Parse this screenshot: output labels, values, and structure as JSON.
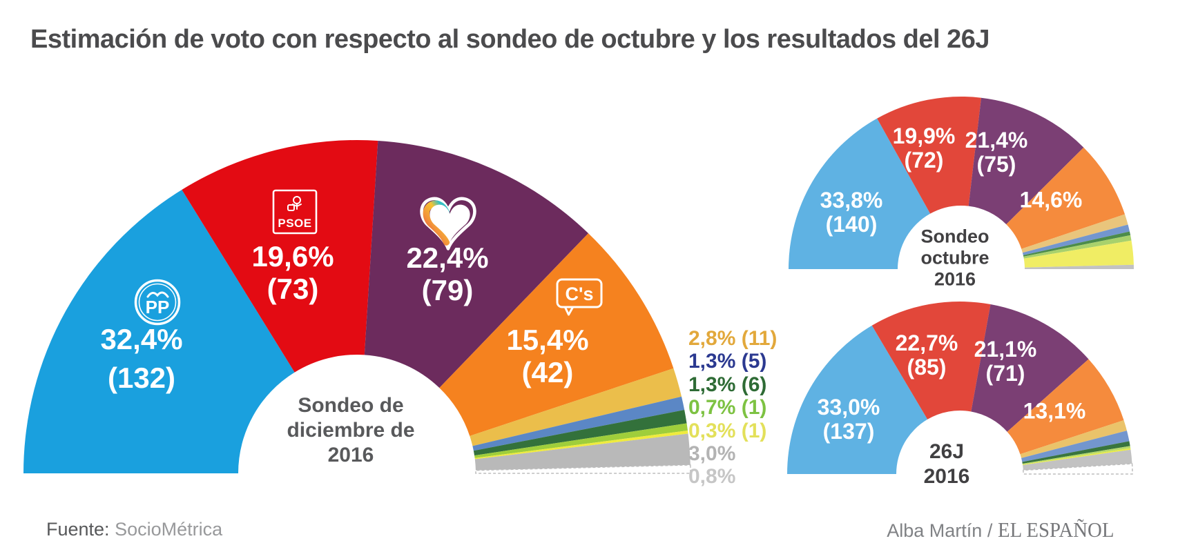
{
  "title": "Estimación de voto con respecto al sondeo de octubre y los resultados del 26J",
  "footer": {
    "source_label": "Fuente:",
    "source_value": "SocioMétrica",
    "credit_author": "Alba Martín / ",
    "credit_brand": "EL ESPAÑOL"
  },
  "chart_data": [
    {
      "id": "sondeo-diciembre-2016",
      "type": "pie",
      "subtype": "hemicycle-donut",
      "span_degrees": 180,
      "center_label_lines": [
        "Sondeo de",
        "diciembre de",
        "2016"
      ],
      "slices": [
        {
          "name": "PP",
          "pct": 32.4,
          "seats": 132,
          "color": "#1aa0de",
          "label_pct": "32,4%",
          "label_seats": "(132)"
        },
        {
          "name": "PSOE",
          "pct": 19.6,
          "seats": 73,
          "color": "#e30b13",
          "label_pct": "19,6%",
          "label_seats": "(73)"
        },
        {
          "name": "Podemos",
          "pct": 22.4,
          "seats": 79,
          "color": "#6c2b5d",
          "label_pct": "22,4%",
          "label_seats": "(79)"
        },
        {
          "name": "Ciudadanos",
          "pct": 15.4,
          "seats": 42,
          "color": "#f5821f",
          "label_pct": "15,4%",
          "label_seats": "(42)"
        },
        {
          "name": "minor-1",
          "pct": 2.8,
          "seats": 11,
          "color": "#ebbe4b"
        },
        {
          "name": "minor-2",
          "pct": 1.3,
          "seats": 5,
          "color": "#5b87c5"
        },
        {
          "name": "minor-3",
          "pct": 1.3,
          "seats": 6,
          "color": "#33713b"
        },
        {
          "name": "minor-4",
          "pct": 0.7,
          "seats": 1,
          "color": "#9fce3b"
        },
        {
          "name": "minor-5",
          "pct": 0.3,
          "seats": 1,
          "color": "#efeb3d"
        },
        {
          "name": "minor-6",
          "pct": 3.0,
          "color": "#b9b9b9"
        },
        {
          "name": "minor-7",
          "pct": 0.8,
          "color": "#ffffff",
          "dashed": true
        }
      ],
      "legend": [
        {
          "text": "2,8% (11)",
          "color": "#e2a83b"
        },
        {
          "text": "1,3% (5)",
          "color": "#2b3990"
        },
        {
          "text": "1,3% (6)",
          "color": "#2e6b35"
        },
        {
          "text": "0,7% (1)",
          "color": "#7dc242"
        },
        {
          "text": "0,3% (1)",
          "color": "#e3e05a"
        },
        {
          "text": "3,0%",
          "color": "#b3b3b3"
        },
        {
          "text": "0,8%",
          "color": "#c6c6c6"
        }
      ]
    },
    {
      "id": "sondeo-octubre-2016",
      "type": "pie",
      "subtype": "hemicycle-donut",
      "span_degrees": 180,
      "center_label_lines": [
        "Sondeo",
        "octubre",
        "2016"
      ],
      "slices": [
        {
          "name": "PP",
          "pct": 33.8,
          "seats": 140,
          "color": "#5fb2e3",
          "label_pct": "33,8%",
          "label_seats": "(140)"
        },
        {
          "name": "PSOE",
          "pct": 19.9,
          "seats": 72,
          "color": "#e2473a",
          "label_pct": "19,9%",
          "label_seats": "(72)"
        },
        {
          "name": "Podemos",
          "pct": 21.4,
          "seats": 75,
          "color": "#7b3f74",
          "label_pct": "21,4%",
          "label_seats": "(75)"
        },
        {
          "name": "Ciudadanos",
          "pct": 14.6,
          "color": "#f58b3d",
          "label_pct": "14,6%"
        },
        {
          "name": "minor-1",
          "pct": 2.0,
          "color": "#e9c57c"
        },
        {
          "name": "minor-2",
          "pct": 1.3,
          "color": "#7396ce"
        },
        {
          "name": "minor-3",
          "pct": 0.7,
          "color": "#4c8c4a"
        },
        {
          "name": "minor-4",
          "pct": 1.0,
          "color": "#a8d16c"
        },
        {
          "name": "minor-5",
          "pct": 4.5,
          "color": "#f0ed64"
        },
        {
          "name": "minor-6",
          "pct": 0.8,
          "color": "#c2c2c2"
        }
      ]
    },
    {
      "id": "26j-2016",
      "type": "pie",
      "subtype": "hemicycle-donut",
      "span_degrees": 180,
      "center_label_lines": [
        "26J",
        "2016"
      ],
      "slices": [
        {
          "name": "PP",
          "pct": 33.0,
          "seats": 137,
          "color": "#5fb2e3",
          "label_pct": "33,0%",
          "label_seats": "(137)"
        },
        {
          "name": "PSOE",
          "pct": 22.7,
          "seats": 85,
          "color": "#e2473a",
          "label_pct": "22,7%",
          "label_seats": "(85)"
        },
        {
          "name": "Podemos",
          "pct": 21.1,
          "seats": 71,
          "color": "#7b3f74",
          "label_pct": "21,1%",
          "label_seats": "(71)"
        },
        {
          "name": "Ciudadanos",
          "pct": 13.1,
          "color": "#f58b3d",
          "label_pct": "13,1%"
        },
        {
          "name": "minor-1",
          "pct": 2.0,
          "color": "#eac36a"
        },
        {
          "name": "minor-2",
          "pct": 2.0,
          "color": "#7396ce"
        },
        {
          "name": "minor-3",
          "pct": 0.9,
          "color": "#39753e"
        },
        {
          "name": "minor-4",
          "pct": 0.4,
          "color": "#b5d96a"
        },
        {
          "name": "minor-5",
          "pct": 0.3,
          "color": "#e8eb47"
        },
        {
          "name": "minor-6",
          "pct": 2.6,
          "color": "#c2c2c2"
        },
        {
          "name": "minor-7",
          "pct": 1.9,
          "color": "#ffffff",
          "dashed": true
        }
      ]
    }
  ]
}
